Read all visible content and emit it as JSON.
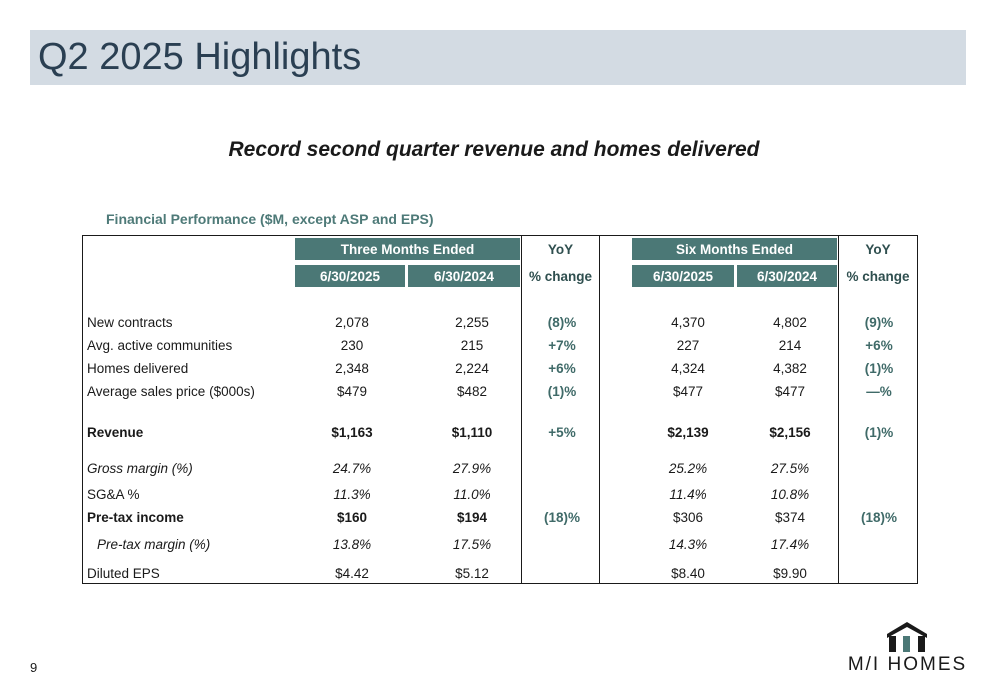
{
  "slide": {
    "title": "Q2 2025 Highlights",
    "subtitle": "Record second quarter revenue and homes delivered",
    "section_label": "Financial Performance ($M, except ASP and EPS)",
    "page_number": "9"
  },
  "table": {
    "group_headers": {
      "three_months": "Three Months Ended",
      "six_months": "Six Months Ended",
      "yoy": "YoY"
    },
    "sub_headers": {
      "date_current": "6/30/2025",
      "date_prior": "6/30/2024",
      "pct_change": "% change"
    },
    "rows": [
      {
        "label": "New contracts",
        "q_2025": "2,078",
        "q_2024": "2,255",
        "q_yoy": "(8)%",
        "s_2025": "4,370",
        "s_2024": "4,802",
        "s_yoy": "(9)%"
      },
      {
        "label": "Avg. active communities",
        "q_2025": "230",
        "q_2024": "215",
        "q_yoy": "+7%",
        "s_2025": "227",
        "s_2024": "214",
        "s_yoy": "+6%"
      },
      {
        "label": "Homes delivered",
        "q_2025": "2,348",
        "q_2024": "2,224",
        "q_yoy": "+6%",
        "s_2025": "4,324",
        "s_2024": "4,382",
        "s_yoy": "(1)%"
      },
      {
        "label": "Average sales price ($000s)",
        "q_2025": "$479",
        "q_2024": "$482",
        "q_yoy": "(1)%",
        "s_2025": "$477",
        "s_2024": "$477",
        "s_yoy": "—%"
      },
      {
        "label": "Revenue",
        "q_2025": "$1,163",
        "q_2024": "$1,110",
        "q_yoy": "+5%",
        "s_2025": "$2,139",
        "s_2024": "$2,156",
        "s_yoy": "(1)%"
      },
      {
        "label": "Gross margin (%)",
        "q_2025": "24.7%",
        "q_2024": "27.9%",
        "q_yoy": "",
        "s_2025": "25.2%",
        "s_2024": "27.5%",
        "s_yoy": ""
      },
      {
        "label": "SG&A %",
        "q_2025": "11.3%",
        "q_2024": "11.0%",
        "q_yoy": "",
        "s_2025": "11.4%",
        "s_2024": "10.8%",
        "s_yoy": ""
      },
      {
        "label": "Pre-tax income",
        "q_2025": "$160",
        "q_2024": "$194",
        "q_yoy": "(18)%",
        "s_2025": "$306",
        "s_2024": "$374",
        "s_yoy": "(18)%"
      },
      {
        "label": "Pre-tax margin (%)",
        "q_2025": "13.8%",
        "q_2024": "17.5%",
        "q_yoy": "",
        "s_2025": "14.3%",
        "s_2024": "17.4%",
        "s_yoy": ""
      },
      {
        "label": "Diluted EPS",
        "q_2025": "$4.42",
        "q_2024": "$5.12",
        "q_yoy": "",
        "s_2025": "$8.40",
        "s_2024": "$9.90",
        "s_yoy": ""
      }
    ]
  },
  "logo": {
    "text": "M/I HOMES",
    "brand_color": "#1a1a1a",
    "accent_color": "#4b7876"
  }
}
